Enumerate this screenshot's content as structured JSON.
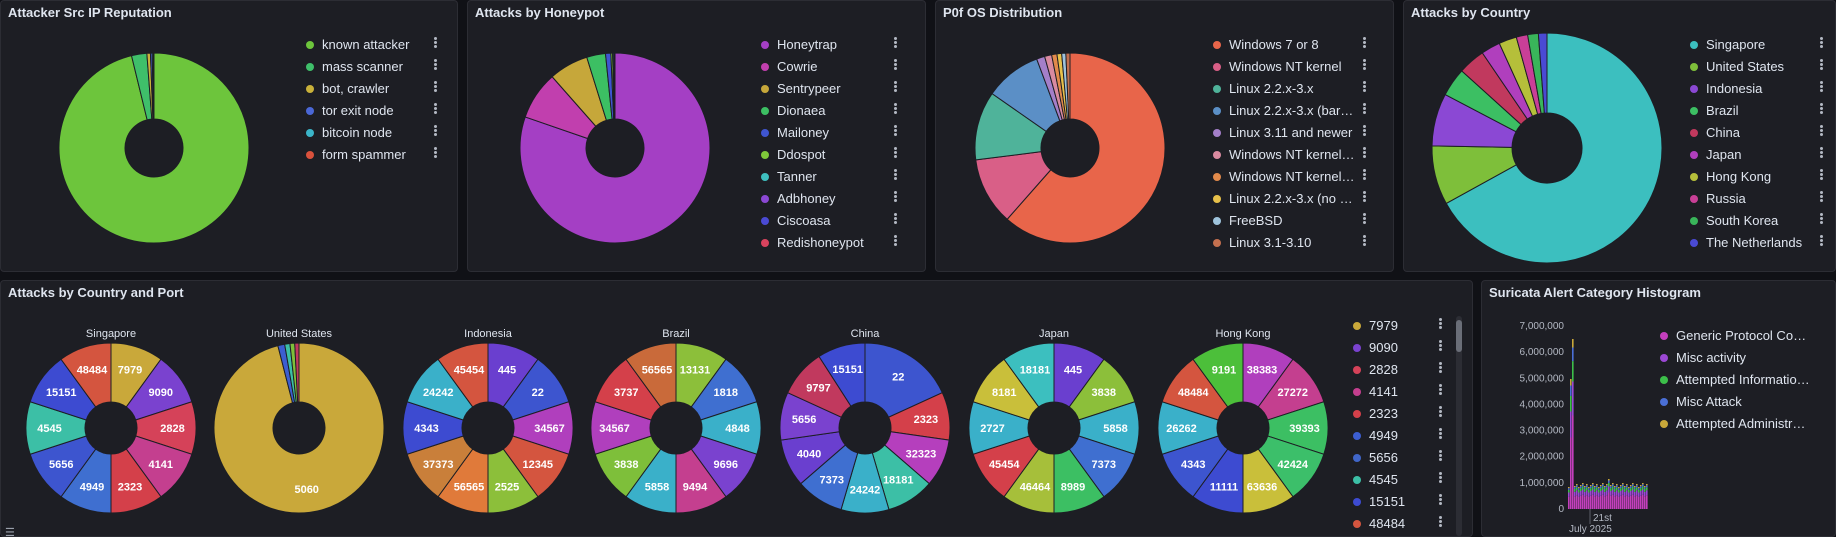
{
  "panels": {
    "reputation": {
      "title": "Attacker Src IP Reputation"
    },
    "honeypot": {
      "title": "Attacks by Honeypot"
    },
    "p0f": {
      "title": "P0f OS Distribution"
    },
    "country": {
      "title": "Attacks by Country"
    },
    "country_port": {
      "title": "Attacks by Country and Port"
    },
    "suricata": {
      "title": "Suricata Alert Category Histogram"
    }
  },
  "chart_data": [
    {
      "id": "reputation",
      "type": "pie",
      "donut": true,
      "categories": [
        "known attacker",
        "mass scanner",
        "bot, crawler",
        "tor exit node",
        "bitcoin node",
        "form spammer"
      ],
      "values": [
        96.2,
        2.6,
        0.6,
        0.3,
        0.2,
        0.1
      ],
      "colors": [
        "#6dc53c",
        "#3fbf6a",
        "#c9b13a",
        "#4a67d6",
        "#3bb5c9",
        "#d9513c"
      ]
    },
    {
      "id": "honeypot",
      "type": "pie",
      "donut": true,
      "categories": [
        "Honeytrap",
        "Cowrie",
        "Sentrypeer",
        "Dionaea",
        "Mailoney",
        "Ddospot",
        "Tanner",
        "Adbhoney",
        "Ciscoasa",
        "Redishoneypot"
      ],
      "values": [
        80.3,
        8.2,
        6.7,
        3.2,
        0.9,
        0.3,
        0.2,
        0.1,
        0.05,
        0.05
      ],
      "colors": [
        "#a43fc4",
        "#c13fae",
        "#c6a73a",
        "#3cbf63",
        "#3f55d0",
        "#7ec83a",
        "#3ebfbf",
        "#8b48d4",
        "#4a4ad4",
        "#d9435e"
      ]
    },
    {
      "id": "p0f",
      "type": "pie",
      "donut": true,
      "categories": [
        "Windows 7 or 8",
        "Windows NT kernel",
        "Linux 2.2.x-3.x",
        "Linux 2.2.x-3.x (bare...",
        "Linux 3.11 and newer",
        "Windows NT kernel ...",
        "Windows NT kernel ...",
        "Linux 2.2.x-3.x (no ti...",
        "FreeBSD",
        "Linux 3.1-3.10"
      ],
      "values": [
        61.5,
        11.5,
        11.7,
        9.6,
        1.4,
        1.2,
        0.9,
        0.8,
        0.7,
        0.7
      ],
      "colors": [
        "#e8654a",
        "#d95f87",
        "#4fb39a",
        "#5b8fc6",
        "#a47fc9",
        "#d98aa0",
        "#e28a4b",
        "#e7c04a",
        "#9ec3dc",
        "#c4704f"
      ]
    },
    {
      "id": "country",
      "type": "pie",
      "donut": true,
      "categories": [
        "Singapore",
        "United States",
        "Indonesia",
        "Brazil",
        "China",
        "Japan",
        "Hong Kong",
        "Russia",
        "South Korea",
        "The Netherlands"
      ],
      "values": [
        67.0,
        8.3,
        7.4,
        4.0,
        3.8,
        2.7,
        2.5,
        1.6,
        1.5,
        1.2
      ],
      "colors": [
        "#3cbfbf",
        "#7ebf3a",
        "#8b48d4",
        "#3cbf63",
        "#c1395e",
        "#b03fbd",
        "#b5bf3a",
        "#c93f97",
        "#39b55a",
        "#4a4ad4"
      ]
    },
    {
      "id": "country_port",
      "type": "pie",
      "donut": true,
      "legend": [
        "7979",
        "9090",
        "2828",
        "4141",
        "2323",
        "4949",
        "5656",
        "4545",
        "15151",
        "48484"
      ],
      "legend_colors": [
        "#c9a83a",
        "#7a42cf",
        "#d54259",
        "#c43f8f",
        "#d4404a",
        "#3c5ed1",
        "#4066c9",
        "#3cbfa6",
        "#3d4bd1",
        "#d4553f"
      ],
      "pies": [
        {
          "name": "Singapore",
          "labels": [
            "7979",
            "9090",
            "2828",
            "4141",
            "2323",
            "4949",
            "5656",
            "4545",
            "15151",
            "48484"
          ],
          "values": [
            1,
            1,
            1,
            1,
            1,
            1,
            1,
            1,
            1,
            1
          ],
          "colors": [
            "#c9a83a",
            "#7a42cf",
            "#d54259",
            "#c43f8f",
            "#d4404a",
            "#3f6fd0",
            "#3d55cf",
            "#3cbfa6",
            "#3d4bd1",
            "#d4553f"
          ]
        },
        {
          "name": "United States",
          "labels": [
            "5060",
            "",
            "",
            "",
            ""
          ],
          "values": [
            96,
            1.3,
            1,
            0.9,
            0.8
          ],
          "colors": [
            "#c9a83a",
            "#3c5ed1",
            "#3cbfa6",
            "#7ebf3a",
            "#c1395e"
          ]
        },
        {
          "name": "Indonesia",
          "labels": [
            "445",
            "22",
            "34567",
            "12345",
            "2525",
            "56565",
            "37373",
            "4343",
            "24242",
            "45454"
          ],
          "values": [
            1,
            1,
            1,
            1,
            1,
            1,
            1,
            1,
            1,
            1
          ],
          "colors": [
            "#6a3fcf",
            "#3d55cf",
            "#b03fbd",
            "#d4553f",
            "#8cbf3a",
            "#e07a3a",
            "#c97f3a",
            "#3d4bd1",
            "#3ab0c9",
            "#d4553f"
          ]
        },
        {
          "name": "Brazil",
          "labels": [
            "13131",
            "1818",
            "4848",
            "9696",
            "9494",
            "5858",
            "3838",
            "34567",
            "3737",
            "56565"
          ],
          "values": [
            1,
            1,
            1,
            1,
            1,
            1,
            1,
            1,
            1,
            1
          ],
          "colors": [
            "#8cbf3a",
            "#3f6fd0",
            "#3ab0c9",
            "#7a42cf",
            "#c43f8f",
            "#3ab0c9",
            "#7ebf3a",
            "#b03fbd",
            "#d4404a",
            "#c96a3a"
          ]
        },
        {
          "name": "China",
          "labels": [
            "22",
            "2323",
            "32323",
            "18181",
            "24242",
            "7373",
            "4040",
            "5656",
            "9797",
            "15151"
          ],
          "values": [
            2,
            1,
            1,
            1,
            1,
            1,
            1,
            1,
            1,
            1
          ],
          "colors": [
            "#3d55cf",
            "#d4404a",
            "#b53fbd",
            "#3cbfa6",
            "#3ab0c9",
            "#3f6fd0",
            "#6a3fcf",
            "#7a42cf",
            "#c1395e",
            "#3d4bd1"
          ]
        },
        {
          "name": "Japan",
          "labels": [
            "445",
            "3838",
            "5858",
            "7373",
            "8989",
            "46464",
            "45454",
            "2727",
            "8181",
            "18181"
          ],
          "values": [
            1,
            1,
            1,
            1,
            1,
            1,
            1,
            1,
            1,
            1
          ],
          "colors": [
            "#6a3fcf",
            "#8cbf3a",
            "#3ab0c9",
            "#3f6fd0",
            "#3cbf63",
            "#a6bf3a",
            "#d4404a",
            "#3ab0c9",
            "#c9bf3a",
            "#3cbfbf"
          ]
        },
        {
          "name": "Hong Kong",
          "labels": [
            "38383",
            "27272",
            "39393",
            "42424",
            "63636",
            "11111",
            "4343",
            "26262",
            "48484",
            "9191"
          ],
          "values": [
            1,
            1,
            1,
            1,
            1,
            1,
            1,
            1,
            1,
            1
          ],
          "colors": [
            "#b03fbd",
            "#c43f8f",
            "#3cbf63",
            "#3cbf6a",
            "#c9bf3a",
            "#3d4bd1",
            "#3d55cf",
            "#3ab0c9",
            "#d4553f",
            "#4cbf3a"
          ]
        }
      ]
    },
    {
      "id": "suricata",
      "type": "bar",
      "categories": [
        "Generic Protocol Comm...",
        "Misc activity",
        "Attempted Information L...",
        "Misc Attack",
        "Attempted Administrato..."
      ],
      "colors": [
        "#c43fbd",
        "#9b48d4",
        "#3cbf4a",
        "#4a6fd6",
        "#c9a83a"
      ],
      "y_ticks": [
        "7,000,000",
        "6,000,000",
        "5,000,000",
        "4,000,000",
        "3,000,000",
        "2,000,000",
        "1,000,000",
        "0"
      ],
      "x_tick": "21st",
      "x_sub": "July 2025",
      "ylim": [
        0,
        7000000
      ]
    }
  ]
}
